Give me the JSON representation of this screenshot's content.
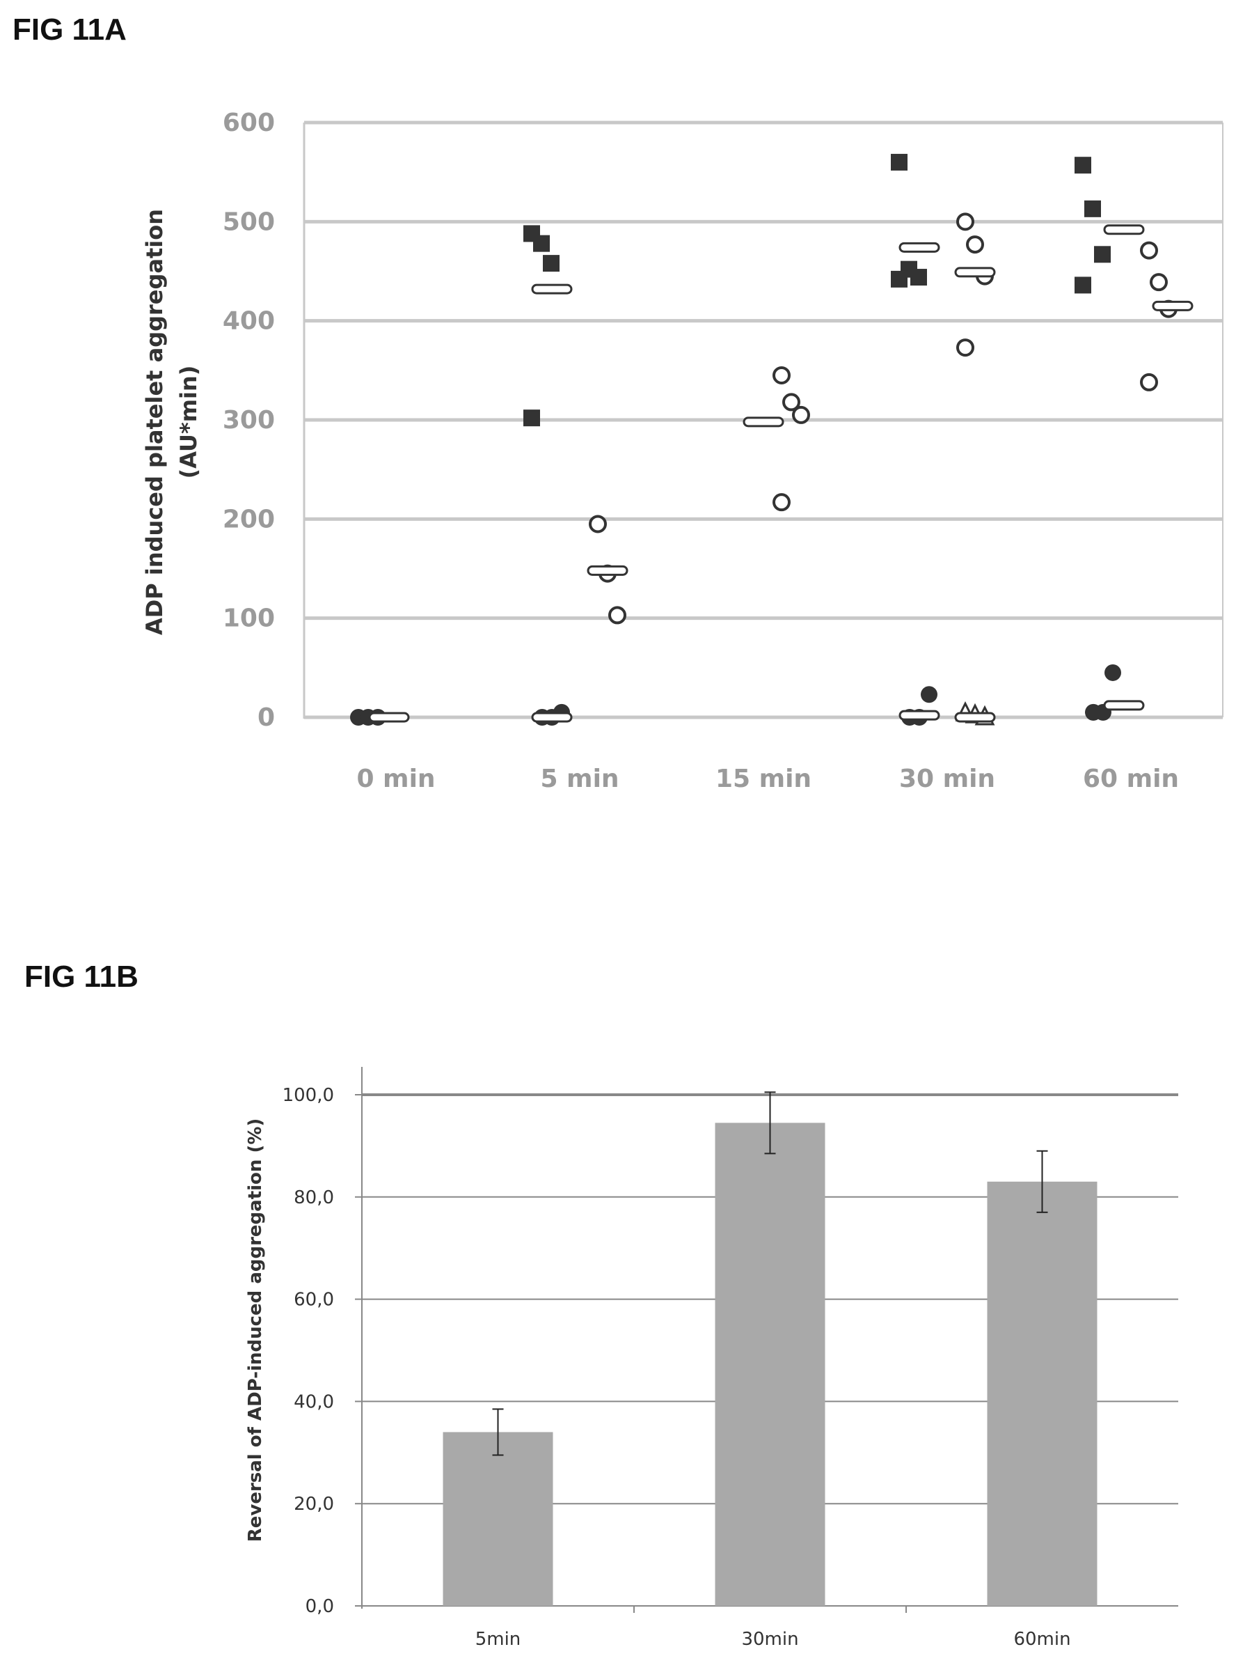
{
  "figures": {
    "a_label": "FIG 11A",
    "b_label": "FIG 11B"
  },
  "colors": {
    "grid_a": "#c8c8c8",
    "bar": "#a9a9a9",
    "grid_b": "#888888",
    "marker": "#333333"
  },
  "chart_data": [
    {
      "type": "scatter",
      "title": "",
      "ylabel_line1": "ADP induced platelet aggregation",
      "ylabel_line2": "(AU*min)",
      "xlabel": "",
      "categories": [
        "0 min",
        "5 min",
        "15 min",
        "30 min",
        "60 min"
      ],
      "ylim": [
        0,
        600
      ],
      "yticks": [
        "0",
        "100",
        "200",
        "300",
        "400",
        "500",
        "600"
      ],
      "grid": true,
      "series": [
        {
          "marker": "filled-square",
          "points": [
            {
              "x": "5 min",
              "y": 488
            },
            {
              "x": "5 min",
              "y": 478
            },
            {
              "x": "5 min",
              "y": 458
            },
            {
              "x": "5 min",
              "y": 302
            },
            {
              "x": "30 min",
              "y": 560
            },
            {
              "x": "30 min",
              "y": 452
            },
            {
              "x": "30 min",
              "y": 444
            },
            {
              "x": "30 min",
              "y": 442
            },
            {
              "x": "60 min",
              "y": 557
            },
            {
              "x": "60 min",
              "y": 513
            },
            {
              "x": "60 min",
              "y": 467
            },
            {
              "x": "60 min",
              "y": 436
            }
          ]
        },
        {
          "marker": "open-circle",
          "points": [
            {
              "x": "5 min",
              "y": 195
            },
            {
              "x": "5 min",
              "y": 145
            },
            {
              "x": "5 min",
              "y": 103
            },
            {
              "x": "15 min",
              "y": 345
            },
            {
              "x": "15 min",
              "y": 318
            },
            {
              "x": "15 min",
              "y": 305
            },
            {
              "x": "15 min",
              "y": 217
            },
            {
              "x": "30 min",
              "y": 500
            },
            {
              "x": "30 min",
              "y": 477
            },
            {
              "x": "30 min",
              "y": 445
            },
            {
              "x": "30 min",
              "y": 373
            },
            {
              "x": "60 min",
              "y": 471
            },
            {
              "x": "60 min",
              "y": 439
            },
            {
              "x": "60 min",
              "y": 412
            },
            {
              "x": "60 min",
              "y": 338
            }
          ]
        },
        {
          "marker": "filled-circle",
          "points": [
            {
              "x": "0 min",
              "y": 0
            },
            {
              "x": "0 min",
              "y": 0
            },
            {
              "x": "0 min",
              "y": 0
            },
            {
              "x": "5 min",
              "y": 0
            },
            {
              "x": "5 min",
              "y": 0
            },
            {
              "x": "5 min",
              "y": 5
            },
            {
              "x": "30 min",
              "y": 0
            },
            {
              "x": "30 min",
              "y": 0
            },
            {
              "x": "30 min",
              "y": 23
            },
            {
              "x": "60 min",
              "y": 5
            },
            {
              "x": "60 min",
              "y": 5
            },
            {
              "x": "60 min",
              "y": 45
            }
          ]
        },
        {
          "marker": "open-triangle",
          "points": [
            {
              "x": "30 min",
              "y": 4
            },
            {
              "x": "30 min",
              "y": 2
            },
            {
              "x": "30 min",
              "y": 0
            }
          ]
        }
      ],
      "means": [
        {
          "x": "0 min",
          "y": 0
        },
        {
          "x": "5 min",
          "y": 432
        },
        {
          "x": "5 min",
          "y": 148
        },
        {
          "x": "5 min",
          "y": 0
        },
        {
          "x": "15 min",
          "y": 298
        },
        {
          "x": "30 min",
          "y": 474
        },
        {
          "x": "30 min",
          "y": 449
        },
        {
          "x": "30 min",
          "y": 2
        },
        {
          "x": "30 min",
          "y": 0
        },
        {
          "x": "60 min",
          "y": 492
        },
        {
          "x": "60 min",
          "y": 415
        },
        {
          "x": "60 min",
          "y": 12
        }
      ]
    },
    {
      "type": "bar",
      "title": "",
      "xlabel": "",
      "ylabel": "Reversal of ADP-induced aggregation (%)",
      "categories": [
        "5min",
        "30min",
        "60min"
      ],
      "values": [
        34,
        94.5,
        83
      ],
      "errors": [
        4.5,
        6,
        6
      ],
      "ylim": [
        0,
        100
      ],
      "yticks": [
        "0,0",
        "20,0",
        "40,0",
        "60,0",
        "80,0",
        "100,0"
      ],
      "grid": true
    }
  ]
}
